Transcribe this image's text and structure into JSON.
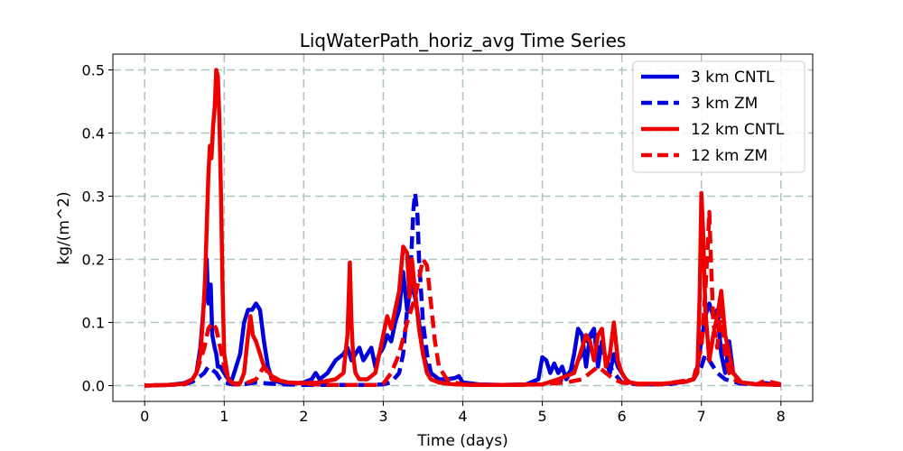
{
  "chart_data": {
    "type": "line",
    "title": "LiqWaterPath_horiz_avg Time Series",
    "xlabel": "Time (days)",
    "ylabel": "kg/(m^2)",
    "xlim": [
      -0.4,
      8.4
    ],
    "ylim": [
      -0.025,
      0.525
    ],
    "xticks": [
      0,
      1,
      2,
      3,
      4,
      5,
      6,
      7,
      8
    ],
    "yticks": [
      0.0,
      0.1,
      0.2,
      0.3,
      0.4,
      0.5
    ],
    "ytick_labels": [
      "0.0",
      "0.1",
      "0.2",
      "0.3",
      "0.4",
      "0.5"
    ],
    "grid": true,
    "legend_position": "top-right",
    "series": [
      {
        "name": "3 km CNTL",
        "color": "#0000dd",
        "style": "solid",
        "x": [
          0,
          0.3,
          0.5,
          0.6,
          0.65,
          0.7,
          0.75,
          0.78,
          0.8,
          0.83,
          0.85,
          0.88,
          0.9,
          0.92,
          0.95,
          1.0,
          1.05,
          1.1,
          1.15,
          1.2,
          1.25,
          1.3,
          1.35,
          1.4,
          1.45,
          1.5,
          1.55,
          1.6,
          1.7,
          1.8,
          2.0,
          2.1,
          2.15,
          2.2,
          2.3,
          2.4,
          2.5,
          2.55,
          2.6,
          2.65,
          2.7,
          2.75,
          2.8,
          2.85,
          2.9,
          2.95,
          3.0,
          3.05,
          3.1,
          3.15,
          3.2,
          3.25,
          3.3,
          3.35,
          3.4,
          3.45,
          3.5,
          3.55,
          3.6,
          3.7,
          3.8,
          3.9,
          3.95,
          4.0,
          4.2,
          4.5,
          4.8,
          4.95,
          5.0,
          5.05,
          5.1,
          5.15,
          5.2,
          5.25,
          5.3,
          5.35,
          5.4,
          5.45,
          5.5,
          5.55,
          5.6,
          5.65,
          5.7,
          5.75,
          5.8,
          5.85,
          5.9,
          5.95,
          6.0,
          6.05,
          6.1,
          6.2,
          6.4,
          6.6,
          6.8,
          6.9,
          6.95,
          7.0,
          7.05,
          7.1,
          7.15,
          7.2,
          7.25,
          7.3,
          7.35,
          7.4,
          7.5,
          7.7,
          7.8,
          8.0
        ],
        "y": [
          0,
          0.001,
          0.004,
          0.01,
          0.02,
          0.06,
          0.14,
          0.2,
          0.13,
          0.16,
          0.08,
          0.06,
          0.05,
          0.03,
          0.03,
          0.02,
          0.01,
          0.01,
          0.03,
          0.05,
          0.1,
          0.12,
          0.12,
          0.13,
          0.12,
          0.07,
          0.03,
          0.01,
          0.005,
          0.002,
          0.005,
          0.01,
          0.02,
          0.01,
          0.02,
          0.04,
          0.05,
          0.06,
          0.04,
          0.05,
          0.06,
          0.04,
          0.05,
          0.06,
          0.03,
          0.05,
          0.06,
          0.08,
          0.07,
          0.1,
          0.12,
          0.18,
          0.12,
          0.16,
          0.14,
          0.1,
          0.05,
          0.03,
          0.02,
          0.01,
          0.01,
          0.012,
          0.015,
          0.005,
          0.002,
          0.001,
          0.002,
          0.01,
          0.045,
          0.04,
          0.02,
          0.035,
          0.02,
          0.03,
          0.01,
          0.02,
          0.05,
          0.09,
          0.08,
          0.03,
          0.08,
          0.09,
          0.03,
          0.07,
          0.04,
          0.02,
          0.05,
          0.03,
          0.02,
          0.01,
          0.005,
          0.002,
          0.002,
          0.003,
          0.006,
          0.01,
          0.03,
          0.07,
          0.11,
          0.13,
          0.11,
          0.12,
          0.05,
          0.02,
          0.07,
          0.02,
          0.005,
          0.002,
          0.004,
          0.001
        ]
      },
      {
        "name": "3 km ZM",
        "color": "#0000dd",
        "style": "dashed",
        "x": [
          0,
          0.5,
          0.6,
          0.7,
          0.75,
          0.8,
          0.85,
          0.9,
          0.95,
          1.0,
          1.1,
          1.2,
          1.3,
          1.4,
          1.5,
          1.7,
          2.0,
          2.3,
          2.5,
          2.8,
          3.0,
          3.1,
          3.2,
          3.25,
          3.3,
          3.35,
          3.38,
          3.4,
          3.43,
          3.45,
          3.5,
          3.55,
          3.6,
          3.7,
          3.9,
          4.2,
          4.6,
          5.0,
          5.2,
          5.3,
          5.4,
          5.5,
          5.6,
          5.7,
          5.8,
          5.9,
          6.0,
          6.2,
          6.6,
          6.9,
          7.0,
          7.05,
          7.1,
          7.15,
          7.2,
          7.3,
          7.5,
          8.0
        ],
        "y": [
          0,
          0.002,
          0.006,
          0.015,
          0.02,
          0.03,
          0.025,
          0.02,
          0.01,
          0.005,
          0.002,
          0.002,
          0.003,
          0.005,
          0.004,
          0.002,
          0.001,
          0.001,
          0.001,
          0.001,
          0.002,
          0.005,
          0.02,
          0.05,
          0.12,
          0.2,
          0.28,
          0.305,
          0.27,
          0.2,
          0.1,
          0.05,
          0.02,
          0.008,
          0.003,
          0.001,
          0.001,
          0.002,
          0.005,
          0.015,
          0.03,
          0.05,
          0.08,
          0.06,
          0.04,
          0.02,
          0.005,
          0.002,
          0.002,
          0.01,
          0.03,
          0.05,
          0.04,
          0.03,
          0.02,
          0.01,
          0.003,
          0.001
        ]
      },
      {
        "name": "12 km CNTL",
        "color": "#ee0000",
        "style": "solid",
        "x": [
          0,
          0.3,
          0.5,
          0.6,
          0.65,
          0.7,
          0.73,
          0.76,
          0.78,
          0.8,
          0.82,
          0.84,
          0.86,
          0.88,
          0.9,
          0.92,
          0.94,
          0.96,
          0.98,
          1.0,
          1.05,
          1.1,
          1.15,
          1.2,
          1.25,
          1.3,
          1.33,
          1.36,
          1.4,
          1.45,
          1.5,
          1.6,
          1.7,
          1.8,
          2.0,
          2.2,
          2.4,
          2.5,
          2.55,
          2.58,
          2.6,
          2.62,
          2.65,
          2.7,
          2.8,
          2.9,
          2.95,
          3.0,
          3.05,
          3.1,
          3.15,
          3.2,
          3.25,
          3.3,
          3.33,
          3.36,
          3.4,
          3.45,
          3.5,
          3.55,
          3.6,
          3.7,
          3.8,
          3.9,
          4.1,
          4.5,
          5.0,
          5.2,
          5.4,
          5.5,
          5.55,
          5.6,
          5.65,
          5.7,
          5.75,
          5.8,
          5.85,
          5.9,
          5.95,
          6.0,
          6.05,
          6.1,
          6.2,
          6.5,
          6.8,
          6.9,
          6.95,
          6.98,
          7.0,
          7.02,
          7.05,
          7.1,
          7.15,
          7.2,
          7.25,
          7.3,
          7.35,
          7.4,
          7.5,
          7.7,
          8.0
        ],
        "y": [
          0,
          0.001,
          0.003,
          0.01,
          0.02,
          0.05,
          0.1,
          0.17,
          0.25,
          0.33,
          0.38,
          0.36,
          0.41,
          0.44,
          0.5,
          0.49,
          0.42,
          0.3,
          0.15,
          0.05,
          0.01,
          0.005,
          0.003,
          0.004,
          0.02,
          0.08,
          0.11,
          0.08,
          0.07,
          0.05,
          0.03,
          0.015,
          0.008,
          0.005,
          0.004,
          0.005,
          0.01,
          0.02,
          0.08,
          0.195,
          0.1,
          0.05,
          0.02,
          0.01,
          0.01,
          0.02,
          0.05,
          0.08,
          0.11,
          0.09,
          0.12,
          0.15,
          0.22,
          0.21,
          0.14,
          0.2,
          0.15,
          0.09,
          0.05,
          0.02,
          0.01,
          0.005,
          0.003,
          0.002,
          0.001,
          0.001,
          0.002,
          0.01,
          0.02,
          0.06,
          0.08,
          0.07,
          0.04,
          0.08,
          0.09,
          0.03,
          0.05,
          0.1,
          0.04,
          0.02,
          0.01,
          0.005,
          0.003,
          0.003,
          0.006,
          0.01,
          0.02,
          0.15,
          0.305,
          0.25,
          0.12,
          0.04,
          0.08,
          0.11,
          0.15,
          0.08,
          0.05,
          0.02,
          0.005,
          0.002,
          0.001
        ]
      },
      {
        "name": "12 km ZM",
        "color": "#ee0000",
        "style": "dashed",
        "x": [
          0,
          0.5,
          0.6,
          0.65,
          0.7,
          0.75,
          0.8,
          0.85,
          0.9,
          0.95,
          1.0,
          1.05,
          1.1,
          1.15,
          1.2,
          1.3,
          1.4,
          1.45,
          1.5,
          1.55,
          1.6,
          1.8,
          2.0,
          2.3,
          2.6,
          2.9,
          3.0,
          3.1,
          3.2,
          3.3,
          3.4,
          3.45,
          3.5,
          3.55,
          3.6,
          3.65,
          3.7,
          3.8,
          3.9,
          4.0,
          4.3,
          4.7,
          5.0,
          5.3,
          5.5,
          5.6,
          5.7,
          5.8,
          5.9,
          6.0,
          6.2,
          6.5,
          6.9,
          7.0,
          7.05,
          7.08,
          7.1,
          7.12,
          7.15,
          7.2,
          7.25,
          7.3,
          7.35,
          7.4,
          7.5,
          7.7,
          7.8,
          8.0
        ],
        "y": [
          0,
          0.002,
          0.01,
          0.02,
          0.04,
          0.06,
          0.09,
          0.1,
          0.09,
          0.06,
          0.03,
          0.01,
          0.004,
          0.002,
          0.002,
          0.005,
          0.01,
          0.02,
          0.03,
          0.02,
          0.01,
          0.005,
          0.003,
          0.001,
          0.001,
          0.001,
          0.003,
          0.02,
          0.05,
          0.1,
          0.14,
          0.17,
          0.2,
          0.19,
          0.13,
          0.07,
          0.03,
          0.01,
          0.005,
          0.002,
          0.001,
          0.001,
          0.002,
          0.005,
          0.01,
          0.02,
          0.03,
          0.02,
          0.01,
          0.005,
          0.002,
          0.002,
          0.01,
          0.06,
          0.15,
          0.22,
          0.275,
          0.2,
          0.1,
          0.06,
          0.12,
          0.05,
          0.02,
          0.01,
          0.005,
          0.002,
          0.008,
          0.002
        ]
      }
    ]
  }
}
